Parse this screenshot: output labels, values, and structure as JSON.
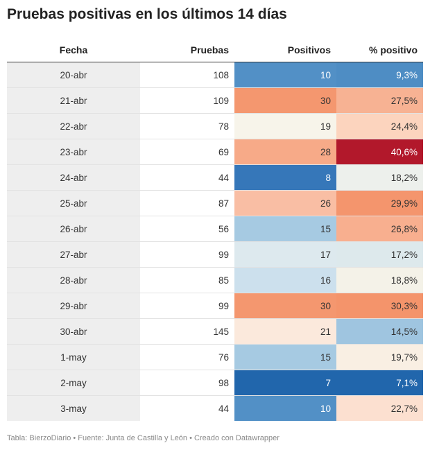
{
  "title": "Pruebas positivas en los últimos 14 días",
  "footer": "Tabla: BierzoDiario • Fuente: Junta de Castilla y León • Creado con Datawrapper",
  "chart_data": {
    "type": "table",
    "title": "Pruebas positivas en los últimos 14 días",
    "columns": [
      "Fecha",
      "Pruebas",
      "Positivos",
      "% positivo"
    ],
    "rows": [
      {
        "fecha": "20-abr",
        "pruebas": "108",
        "positivos": "10",
        "pct": "9,3%"
      },
      {
        "fecha": "21-abr",
        "pruebas": "109",
        "positivos": "30",
        "pct": "27,5%"
      },
      {
        "fecha": "22-abr",
        "pruebas": "78",
        "positivos": "19",
        "pct": "24,4%"
      },
      {
        "fecha": "23-abr",
        "pruebas": "69",
        "positivos": "28",
        "pct": "40,6%"
      },
      {
        "fecha": "24-abr",
        "pruebas": "44",
        "positivos": "8",
        "pct": "18,2%"
      },
      {
        "fecha": "25-abr",
        "pruebas": "87",
        "positivos": "26",
        "pct": "29,9%"
      },
      {
        "fecha": "26-abr",
        "pruebas": "56",
        "positivos": "15",
        "pct": "26,8%"
      },
      {
        "fecha": "27-abr",
        "pruebas": "99",
        "positivos": "17",
        "pct": "17,2%"
      },
      {
        "fecha": "28-abr",
        "pruebas": "85",
        "positivos": "16",
        "pct": "18,8%"
      },
      {
        "fecha": "29-abr",
        "pruebas": "99",
        "positivos": "30",
        "pct": "30,3%"
      },
      {
        "fecha": "30-abr",
        "pruebas": "145",
        "positivos": "21",
        "pct": "14,5%"
      },
      {
        "fecha": "1-may",
        "pruebas": "76",
        "positivos": "15",
        "pct": "19,7%"
      },
      {
        "fecha": "2-may",
        "pruebas": "98",
        "positivos": "7",
        "pct": "7,1%"
      },
      {
        "fecha": "3-may",
        "pruebas": "44",
        "positivos": "10",
        "pct": "22,7%"
      }
    ],
    "cell_colors": {
      "positivos": [
        "#5290c6",
        "#f4976f",
        "#f7f4ea",
        "#f7aa88",
        "#3677b9",
        "#f9bea4",
        "#a6cae2",
        "#dde9ee",
        "#cce0ed",
        "#f4976f",
        "#fbe9dc",
        "#a6cae2",
        "#2166ac",
        "#5290c6"
      ],
      "pct": [
        "#4e8dc4",
        "#f7b293",
        "#fcd4be",
        "#b2182b",
        "#edf0ec",
        "#f4956d",
        "#f8af8f",
        "#dde9ec",
        "#f4f2e8",
        "#f4946b",
        "#9fc5e0",
        "#f9efe3",
        "#2166ac",
        "#fce0d0"
      ]
    },
    "light_text_color": "#ffffff",
    "dark_text_color": "#333333"
  }
}
